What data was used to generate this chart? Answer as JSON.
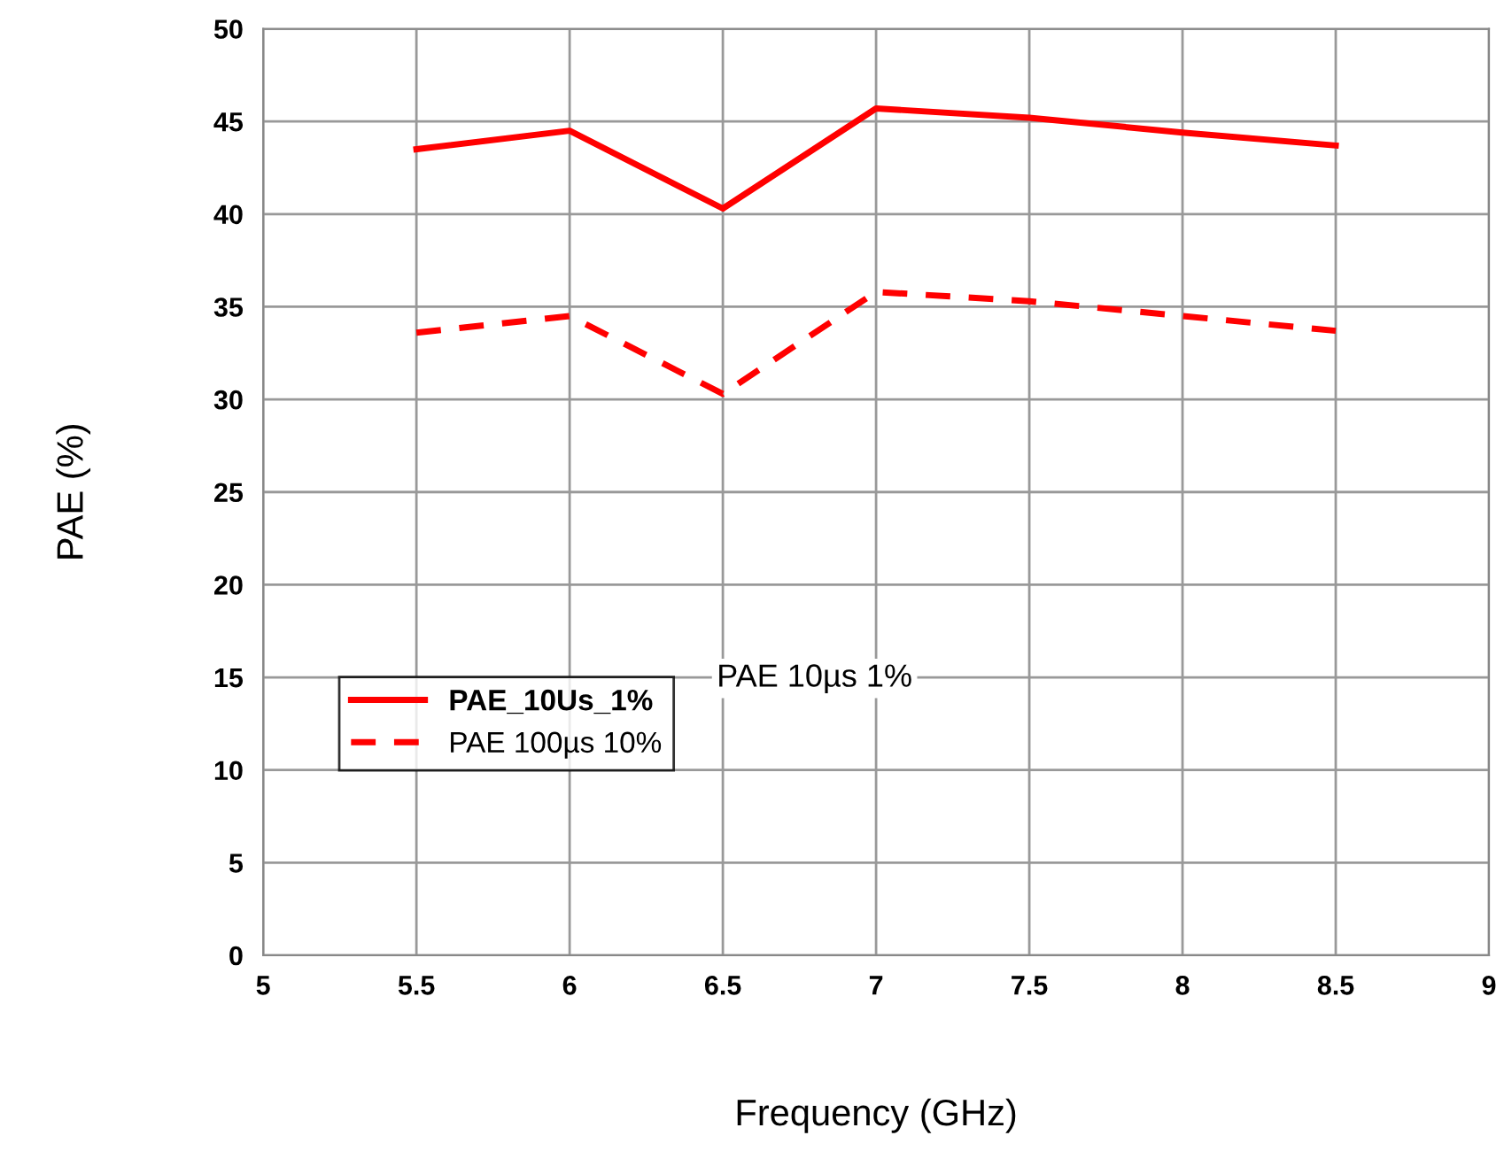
{
  "chart_data": {
    "type": "line",
    "xlabel": "Frequency (GHz)",
    "ylabel": "PAE (%)",
    "x": [
      5.5,
      6,
      6.5,
      7,
      7.5,
      8,
      8.5
    ],
    "series": [
      {
        "name": "PAE_10Us_1%",
        "color": "#ff0000",
        "line_style": "solid",
        "values": [
          43.5,
          44.5,
          40.3,
          45.7,
          45.2,
          44.4,
          43.7
        ]
      },
      {
        "name": "PAE 100µs 10%",
        "color": "#ff0000",
        "line_style": "dashed",
        "values": [
          33.6,
          34.5,
          30.3,
          35.8,
          35.3,
          34.5,
          33.7
        ]
      }
    ],
    "annotations": [
      "PAE 10µs 1%"
    ],
    "xlim": [
      5,
      9
    ],
    "xticks": [
      5,
      5.5,
      6,
      6.5,
      7,
      7.5,
      8,
      8.5,
      9
    ],
    "ylim": [
      0,
      50
    ],
    "yticks": [
      0,
      5,
      10,
      15,
      20,
      25,
      30,
      35,
      40,
      45,
      50
    ],
    "grid": true,
    "legend": "left",
    "marker": "none"
  }
}
